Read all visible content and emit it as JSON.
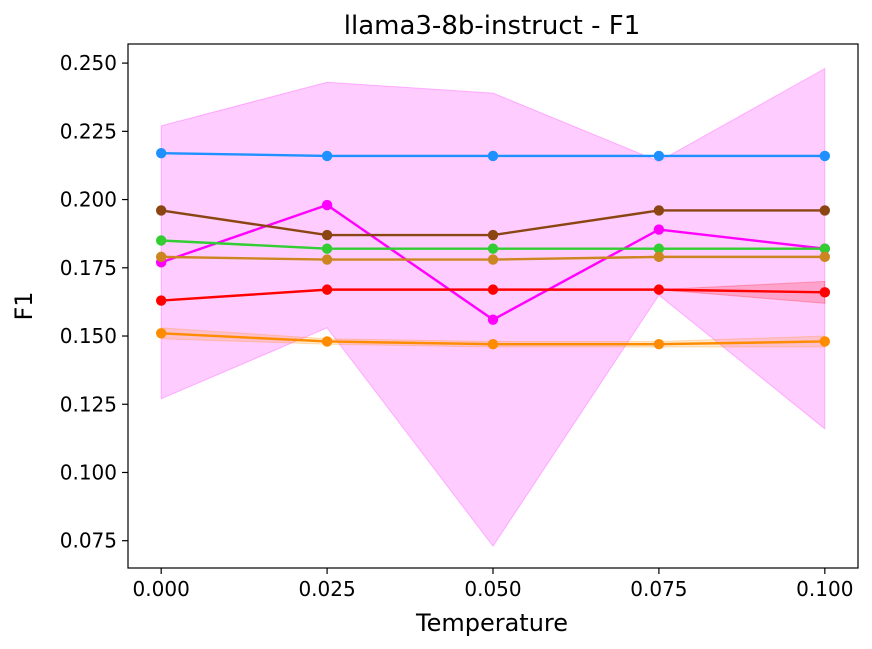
{
  "chart_data": {
    "type": "line",
    "title": "llama3-8b-instruct - F1",
    "xlabel": "Temperature",
    "ylabel": "F1",
    "x": [
      0.0,
      0.025,
      0.05,
      0.075,
      0.1
    ],
    "xlim": [
      -0.005,
      0.105
    ],
    "ylim": [
      0.065,
      0.257
    ],
    "xticks": [
      0.0,
      0.025,
      0.05,
      0.075,
      0.1
    ],
    "xtick_labels": [
      "0.000",
      "0.025",
      "0.050",
      "0.075",
      "0.100"
    ],
    "yticks": [
      0.075,
      0.1,
      0.125,
      0.15,
      0.175,
      0.2,
      0.225,
      0.25
    ],
    "ytick_labels": [
      "0.075",
      "0.100",
      "0.125",
      "0.150",
      "0.175",
      "0.200",
      "0.225",
      "0.250"
    ],
    "grid": false,
    "series": [
      {
        "name": "magenta",
        "color": "#ff00ff",
        "values": [
          0.177,
          0.198,
          0.156,
          0.189,
          0.182
        ],
        "band_lower": [
          0.127,
          0.153,
          0.073,
          0.165,
          0.116
        ],
        "band_upper": [
          0.227,
          0.243,
          0.239,
          0.214,
          0.248
        ]
      },
      {
        "name": "blue",
        "color": "#1e90ff",
        "values": [
          0.217,
          0.216,
          0.216,
          0.216,
          0.216
        ]
      },
      {
        "name": "brown",
        "color": "#8b4513",
        "values": [
          0.196,
          0.187,
          0.187,
          0.196,
          0.196
        ]
      },
      {
        "name": "green",
        "color": "#32cd32",
        "values": [
          0.185,
          0.182,
          0.182,
          0.182,
          0.182
        ]
      },
      {
        "name": "goldenrod",
        "color": "#cd8521",
        "values": [
          0.179,
          0.178,
          0.178,
          0.179,
          0.179
        ]
      },
      {
        "name": "red",
        "color": "#ff0000",
        "values": [
          0.163,
          0.167,
          0.167,
          0.167,
          0.166
        ],
        "band_lower": [
          0.163,
          0.167,
          0.167,
          0.167,
          0.162
        ],
        "band_upper": [
          0.163,
          0.167,
          0.167,
          0.167,
          0.17
        ]
      },
      {
        "name": "orange",
        "color": "#ff8c00",
        "values": [
          0.151,
          0.148,
          0.147,
          0.147,
          0.148
        ],
        "band_lower": [
          0.149,
          0.147,
          0.146,
          0.146,
          0.146
        ],
        "band_upper": [
          0.153,
          0.149,
          0.148,
          0.148,
          0.15
        ]
      }
    ]
  }
}
